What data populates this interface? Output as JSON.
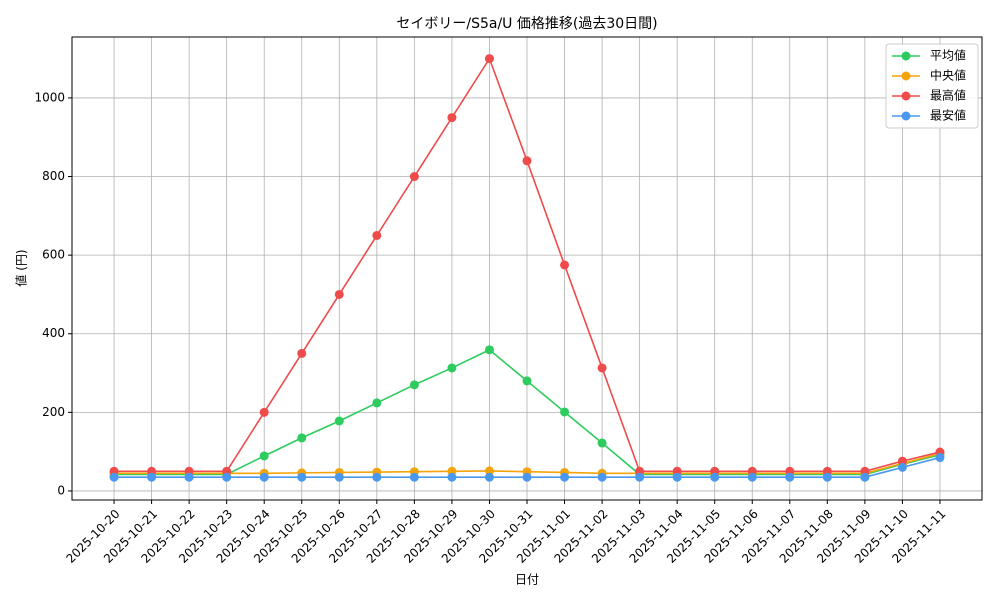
{
  "chart_data": {
    "type": "line",
    "title": "セイボリー/S5a/U 価格推移(過去30日間)",
    "x_label": "日付",
    "y_label": "値 (円)",
    "categories": [
      "2025-10-20",
      "2025-10-21",
      "2025-10-22",
      "2025-10-23",
      "2025-10-24",
      "2025-10-25",
      "2025-10-26",
      "2025-10-27",
      "2025-10-28",
      "2025-10-29",
      "2025-10-30",
      "2025-10-31",
      "2025-11-01",
      "2025-11-02",
      "2025-11-03",
      "2025-11-04",
      "2025-11-05",
      "2025-11-06",
      "2025-11-07",
      "2025-11-08",
      "2025-11-09",
      "2025-11-10",
      "2025-11-11"
    ],
    "series": [
      {
        "name": "平均値",
        "color": "#2ecc5e",
        "values": [
          42,
          42,
          42,
          42,
          89,
          135,
          178,
          224,
          270,
          313,
          359,
          280,
          201,
          122,
          42,
          42,
          42,
          42,
          42,
          42,
          42,
          68,
          92
        ]
      },
      {
        "name": "中央値",
        "color": "#f5a30a",
        "values": [
          45,
          45,
          45,
          45,
          45,
          46,
          47,
          48,
          49,
          50,
          51,
          49,
          47,
          45,
          45,
          45,
          45,
          45,
          45,
          45,
          45,
          70,
          95
        ]
      },
      {
        "name": "最高値",
        "color": "#ef4b4b",
        "values": [
          50,
          50,
          50,
          50,
          200,
          350,
          500,
          650,
          800,
          950,
          1100,
          840,
          575,
          313,
          50,
          50,
          50,
          50,
          50,
          50,
          50,
          76,
          99
        ]
      },
      {
        "name": "最安値",
        "color": "#4a98ee",
        "values": [
          35,
          35,
          35,
          35,
          35,
          35,
          35,
          35,
          35,
          35,
          35,
          35,
          35,
          35,
          35,
          35,
          35,
          35,
          35,
          35,
          35,
          60,
          85
        ]
      }
    ],
    "ylim": [
      -23,
      1155
    ],
    "yticks": [
      0,
      200,
      400,
      600,
      800,
      1000
    ],
    "grid": true,
    "legend": "upper right"
  }
}
